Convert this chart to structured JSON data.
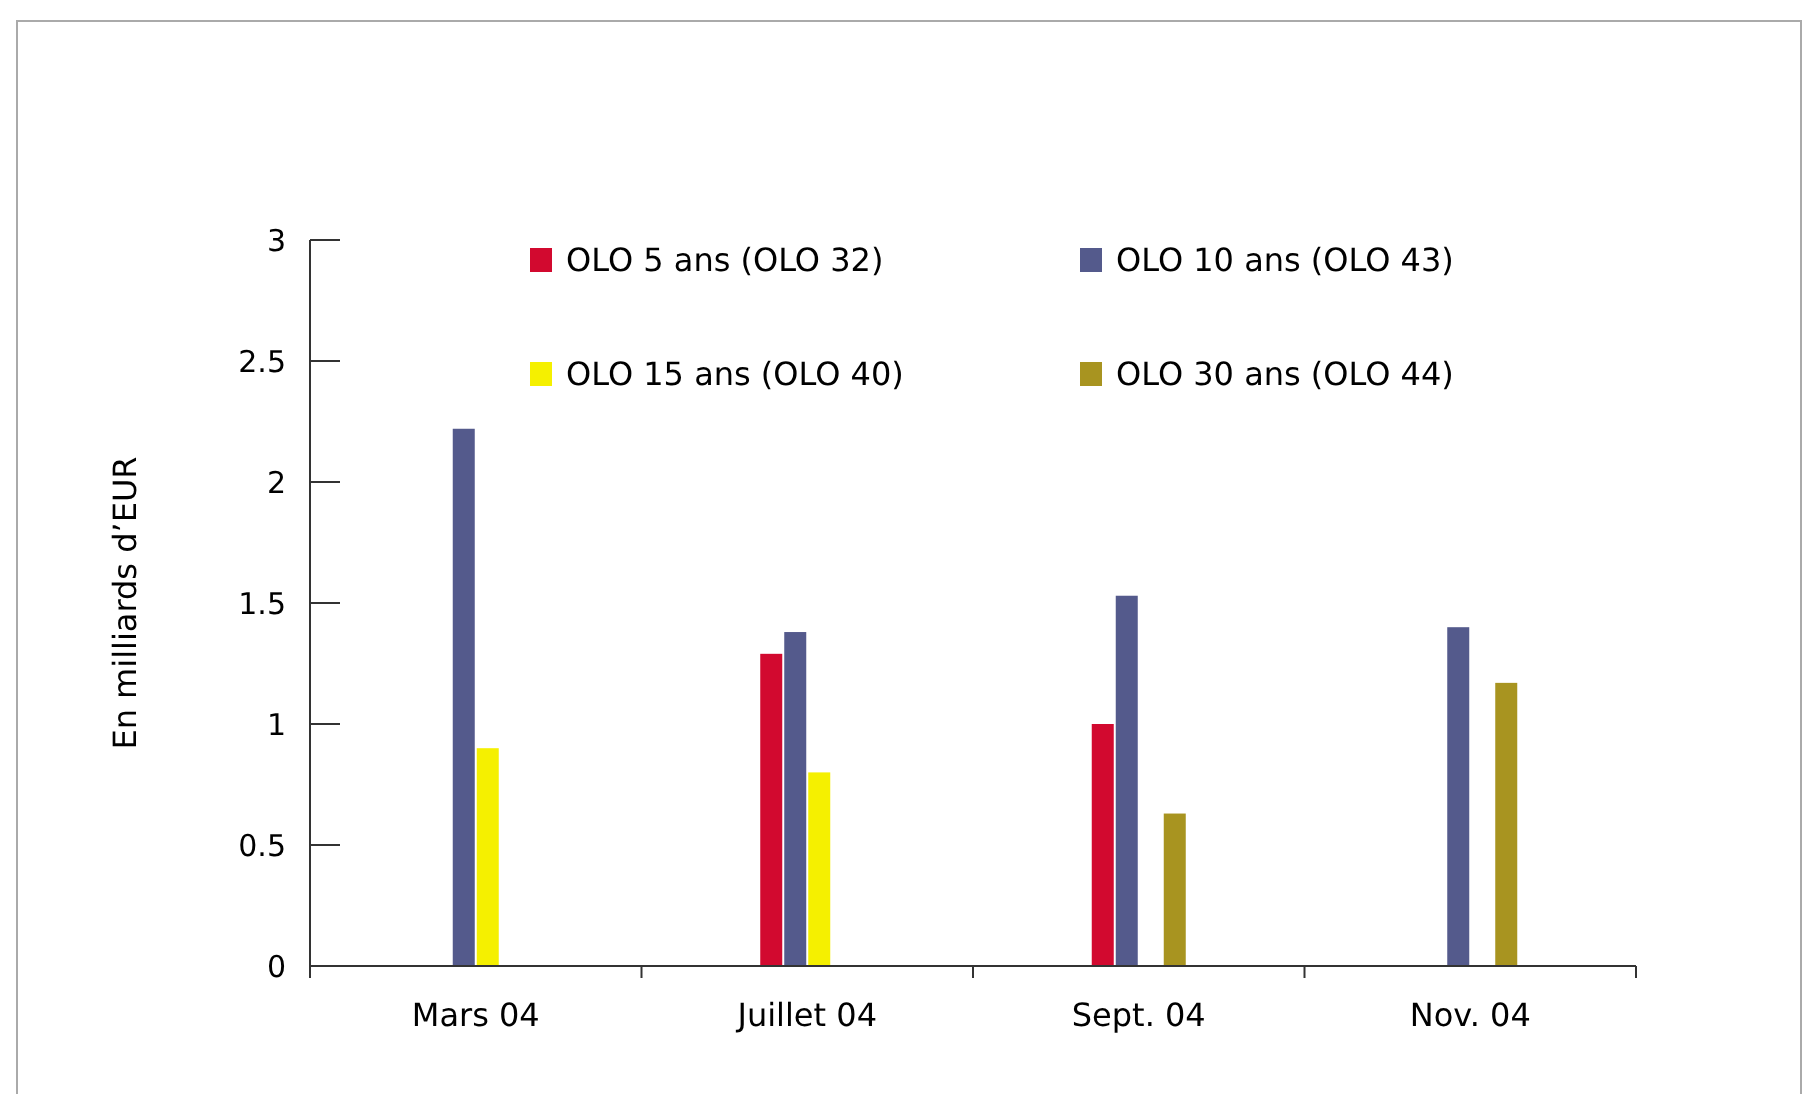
{
  "chart_data": {
    "type": "bar",
    "ylabel": "En milliards d’EUR",
    "categories": [
      "Mars 04",
      "Juillet 04",
      "Sept. 04",
      "Nov. 04"
    ],
    "series": [
      {
        "name": "OLO 5 ans (OLO 32)",
        "color": "#d2092f",
        "values": [
          null,
          1.29,
          1.0,
          null
        ]
      },
      {
        "name": "OLO 10 ans (OLO 43)",
        "color": "#545a8c",
        "values": [
          2.22,
          1.38,
          1.53,
          1.4
        ]
      },
      {
        "name": "OLO 15 ans (OLO 40)",
        "color": "#f5f000",
        "values": [
          0.9,
          0.8,
          null,
          null
        ]
      },
      {
        "name": "OLO 30 ans (OLO 44)",
        "color": "#a89420",
        "values": [
          null,
          null,
          0.63,
          1.17
        ]
      }
    ],
    "ylim": [
      0,
      3
    ],
    "yticks": [
      0,
      0.5,
      1,
      1.5,
      2,
      2.5,
      3
    ],
    "grid": false,
    "legend": "top right"
  }
}
